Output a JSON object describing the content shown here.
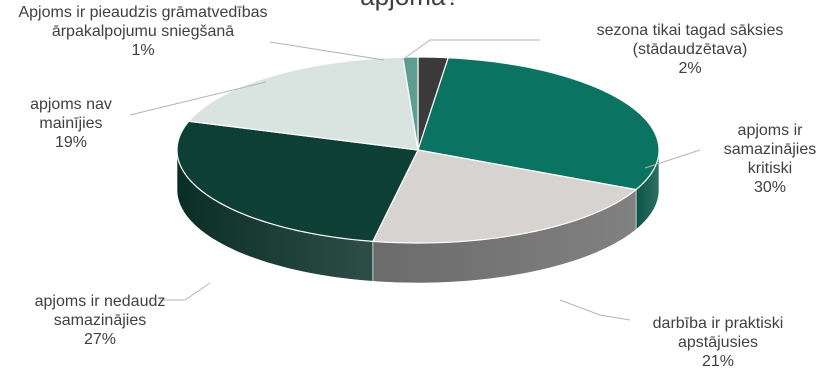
{
  "chart_data": {
    "type": "pie",
    "title": "apjoma?",
    "slices": [
      {
        "label": [
          "sezona tikai tagad sāksies",
          "(stādaudzētava)"
        ],
        "value": 2,
        "value_label": "2%",
        "color": "#3a3a3a",
        "side_color": "#262626"
      },
      {
        "label": [
          "apjoms ir",
          "samazinājies",
          "kritiski"
        ],
        "value": 30,
        "value_label": "30%",
        "color": "#0b7361",
        "side_color": "#0a5547"
      },
      {
        "label": [
          "darbība ir praktiski",
          "apstājusies"
        ],
        "value": 21,
        "value_label": "21%",
        "color": "#d6d3d1",
        "side_color": "#6b6b6b"
      },
      {
        "label": [
          "apjoms ir nedaudz",
          "samazinājies"
        ],
        "value": 27,
        "value_label": "27%",
        "color": "#0e3f35",
        "side_color": "#0a2e26"
      },
      {
        "label": [
          "apjoms nav",
          "mainījies"
        ],
        "value": 19,
        "value_label": "19%",
        "color": "#d9e4e1",
        "side_color": "#a9b7b3"
      },
      {
        "label": [
          "Apjoms ir pieaudzis grāmatvedības",
          "ārpakalpojumu sniegšanā"
        ],
        "value": 1,
        "value_label": "1%",
        "color": "#5e9e91",
        "side_color": "#3d7064"
      }
    ],
    "legend": "none"
  }
}
